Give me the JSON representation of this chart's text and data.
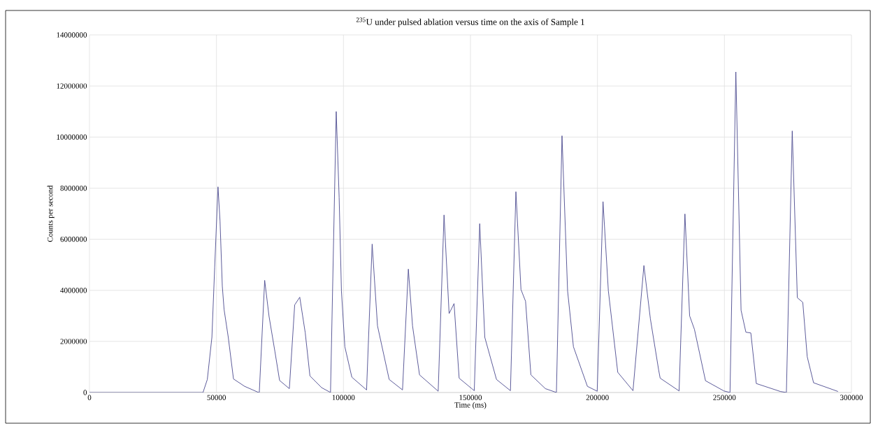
{
  "chart_data": {
    "type": "line",
    "title": "$^{235}$U under pulsed ablation versus time on the axis of Sample 1",
    "xlabel": "Time (ms)",
    "ylabel": "Counts per second",
    "xlim": [
      0,
      300000
    ],
    "xticks": [
      0,
      50000,
      100000,
      150000,
      200000,
      250000,
      300000
    ],
    "ylim": [
      0,
      14000000
    ],
    "yticks": [
      0,
      2000000,
      4000000,
      6000000,
      8000000,
      10000000,
      12000000,
      14000000
    ],
    "grid": true,
    "marker": "none",
    "line_style": "solid",
    "series": [
      {
        "color": "#4b4a8f",
        "x": [
          0,
          44700,
          46400,
          48200,
          49300,
          50600,
          51400,
          52300,
          53000,
          54650,
          56700,
          61100,
          66600,
          66860,
          68980,
          70700,
          73000,
          74850,
          78700,
          80800,
          82800,
          84950,
          86800,
          91400,
          94900,
          97150,
          98300,
          99200,
          100550,
          103300,
          109100,
          111300,
          113400,
          118000,
          123250,
          125550,
          127200,
          129950,
          137300,
          139600,
          141600,
          143550,
          145550,
          151500,
          153650,
          155650,
          160250,
          165750,
          167900,
          169900,
          171700,
          173800,
          179500,
          183850,
          186050,
          188250,
          190550,
          196050,
          199900,
          202200,
          204300,
          208000,
          214000,
          218300,
          220850,
          224100,
          224700,
          232150,
          234450,
          236300,
          238200,
          242550,
          249800,
          252200,
          254500,
          256550,
          258450,
          260400,
          262550,
          272000,
          274400,
          276700,
          278700,
          280850,
          282600,
          285100,
          294700
        ],
        "values": [
          0,
          0,
          510000,
          2160000,
          4900000,
          8050000,
          6720000,
          4160000,
          3250000,
          2160000,
          530000,
          240000,
          0,
          0,
          4390000,
          2980000,
          1610000,
          470000,
          150000,
          3430000,
          3730000,
          2340000,
          650000,
          190000,
          0,
          11000000,
          7640000,
          3980000,
          1790000,
          600000,
          100000,
          5810000,
          2610000,
          510000,
          100000,
          4830000,
          2610000,
          690000,
          50000,
          6950000,
          3090000,
          3480000,
          560000,
          70000,
          6610000,
          2160000,
          510000,
          70000,
          7860000,
          4030000,
          3570000,
          690000,
          150000,
          0,
          10050000,
          3980000,
          1790000,
          240000,
          50000,
          7470000,
          3980000,
          790000,
          70000,
          4970000,
          2880000,
          880000,
          560000,
          60000,
          6990000,
          3000000,
          2470000,
          460000,
          60000,
          0,
          12550000,
          3220000,
          2360000,
          2330000,
          350000,
          40000,
          0,
          10240000,
          3710000,
          3530000,
          1400000,
          380000,
          40000
        ]
      }
    ]
  }
}
